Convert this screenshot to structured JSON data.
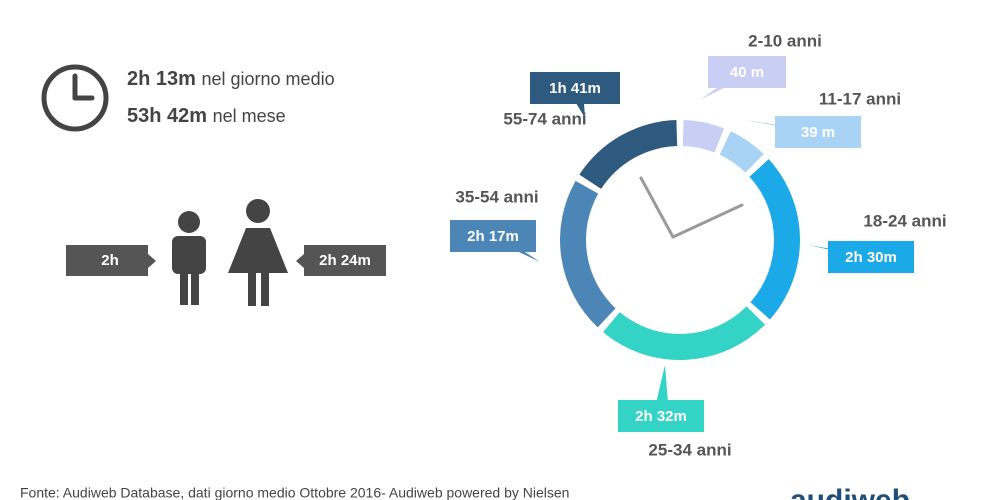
{
  "chart_data": {
    "type": "donut",
    "categories": [
      "2-10 anni",
      "11-17 anni",
      "18-24 anni",
      "25-34 anni",
      "35-54 anni",
      "55-74 anni"
    ],
    "values": [
      40,
      39,
      150,
      152,
      137,
      101
    ],
    "value_labels": [
      "40 m",
      "39 m",
      "2h 30m",
      "2h 32m",
      "2h 17m",
      "1h 41m"
    ],
    "colors": [
      "#c9cff4",
      "#a9d3f4",
      "#1ca9e8",
      "#33d3c6",
      "#4b86b7",
      "#2f5a7f"
    ]
  },
  "summary": [
    {
      "value": "2h 13m",
      "text": "nel giorno medio"
    },
    {
      "value": "53h 42m",
      "text": "nel mese"
    }
  ],
  "gender": {
    "male": "2h",
    "female": "2h 24m"
  },
  "source": "Fonte: Audiweb Database, dati giorno medio Ottobre 2016- Audiweb powered by Nielsen",
  "logo": "audiweb"
}
